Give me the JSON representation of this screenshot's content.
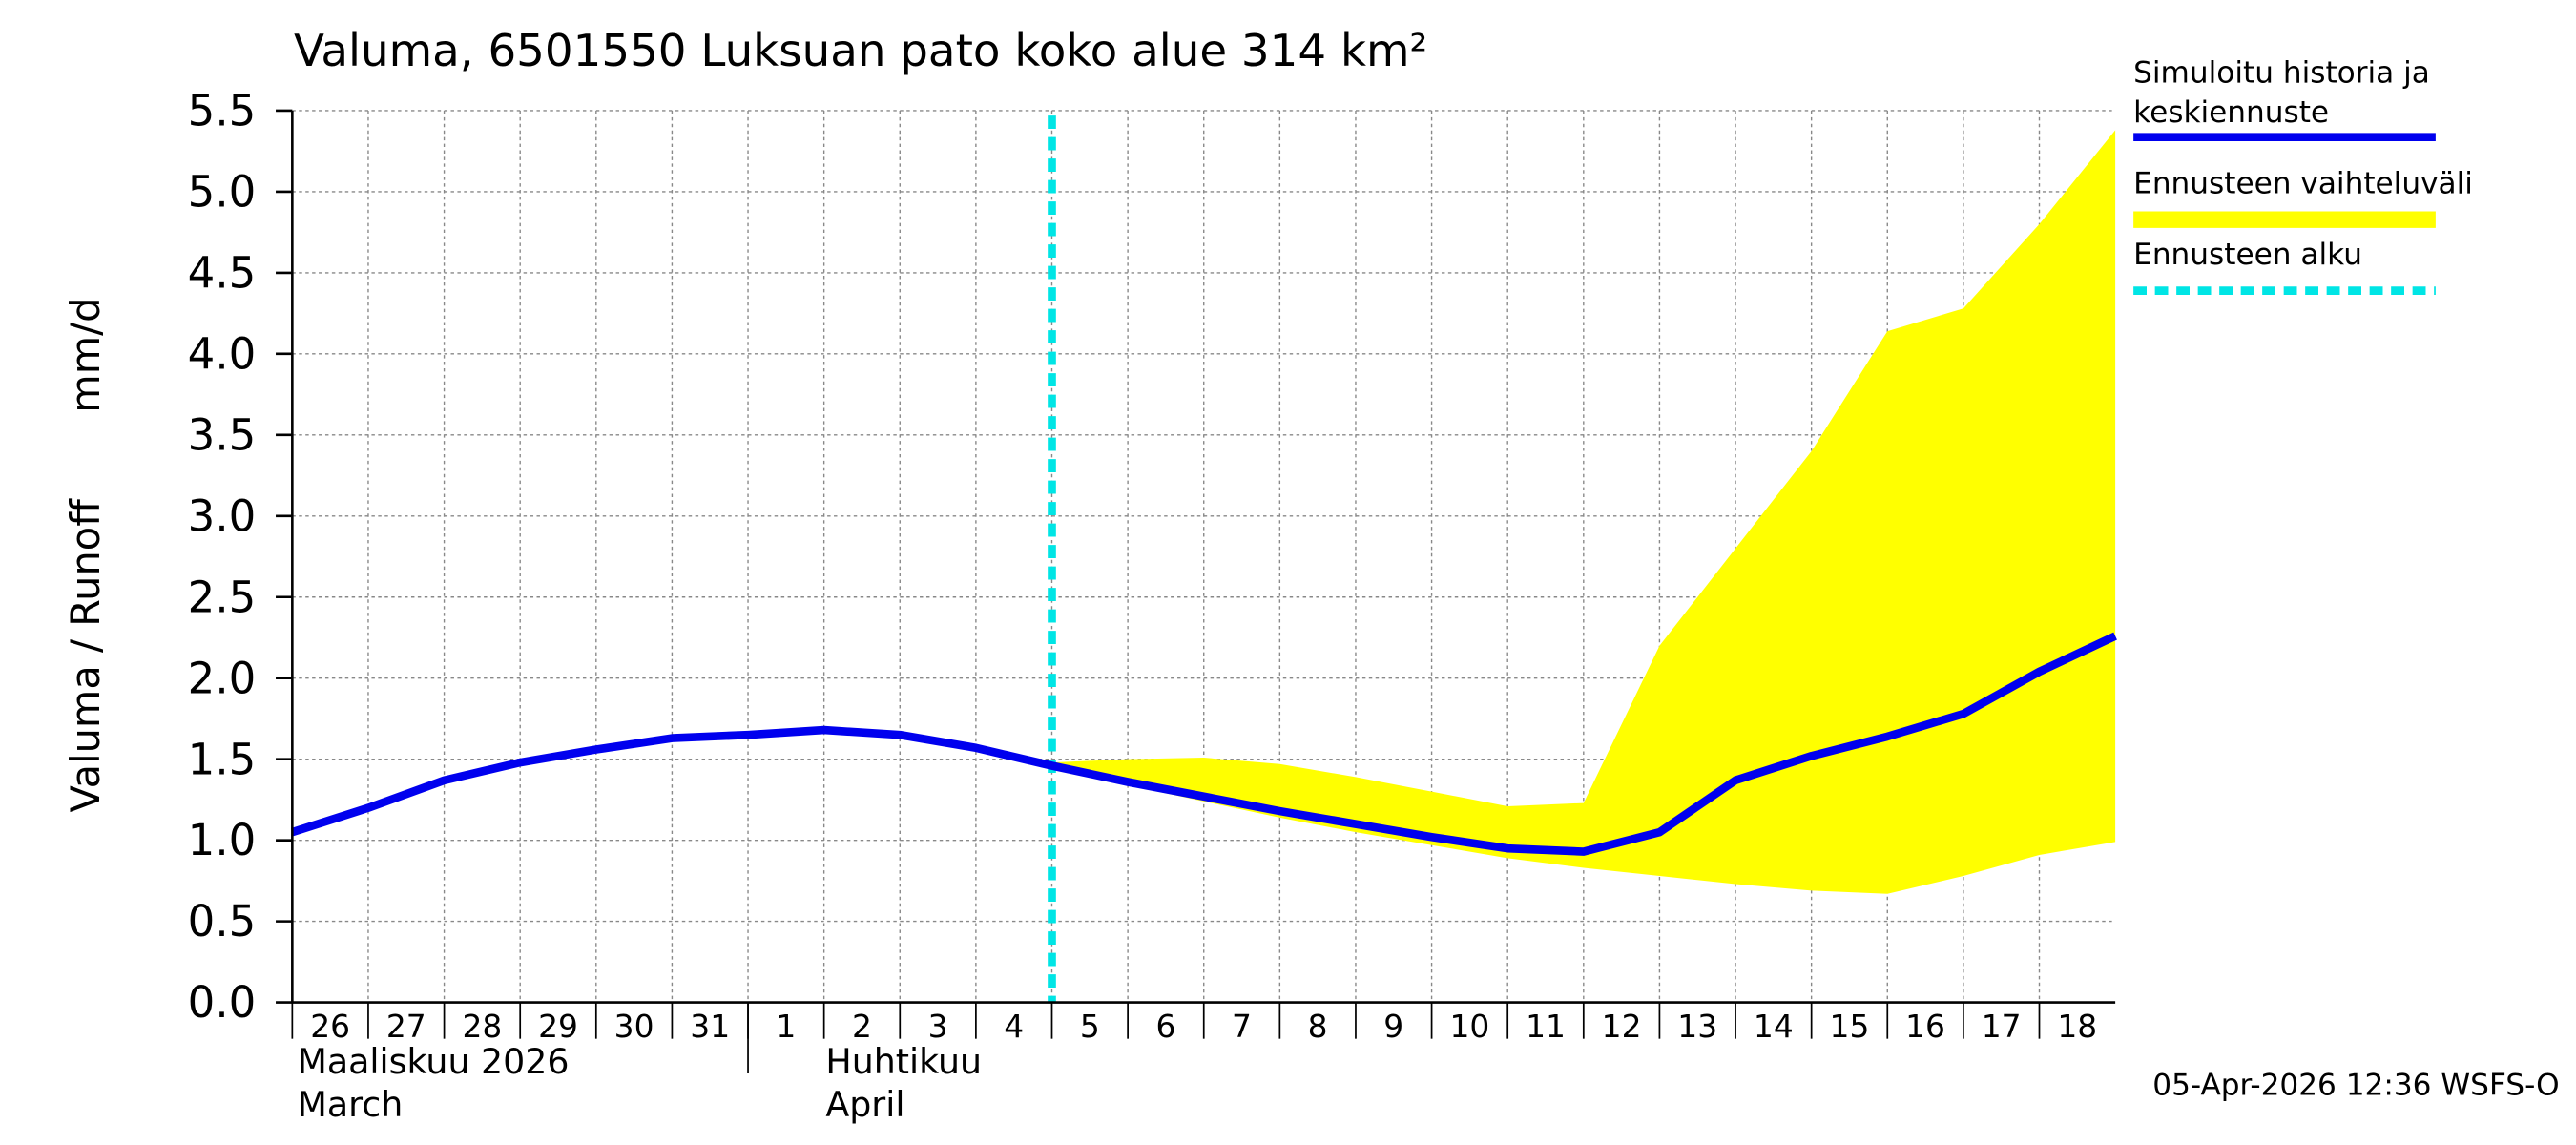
{
  "chart_data": {
    "type": "line",
    "title": "Valuma, 6501550 Luksuan pato koko alue 314 km²",
    "ylabel": "Valuma / Runoff",
    "yunit": "mm/d",
    "x": [
      "2026-03-26",
      "2026-03-27",
      "2026-03-28",
      "2026-03-29",
      "2026-03-30",
      "2026-03-31",
      "2026-04-01",
      "2026-04-02",
      "2026-04-03",
      "2026-04-04",
      "2026-04-05",
      "2026-04-06",
      "2026-04-07",
      "2026-04-08",
      "2026-04-09",
      "2026-04-10",
      "2026-04-11",
      "2026-04-12",
      "2026-04-13",
      "2026-04-14",
      "2026-04-15",
      "2026-04-16",
      "2026-04-17",
      "2026-04-18",
      "2026-04-19"
    ],
    "xlim": [
      "2026-03-26",
      "2026-04-19"
    ],
    "xticks": [
      {
        "value": "2026-03-26",
        "label": "26"
      },
      {
        "value": "2026-03-27",
        "label": "27"
      },
      {
        "value": "2026-03-28",
        "label": "28"
      },
      {
        "value": "2026-03-29",
        "label": "29"
      },
      {
        "value": "2026-03-30",
        "label": "30"
      },
      {
        "value": "2026-03-31",
        "label": "31"
      },
      {
        "value": "2026-04-01",
        "label": "1"
      },
      {
        "value": "2026-04-02",
        "label": "2"
      },
      {
        "value": "2026-04-03",
        "label": "3"
      },
      {
        "value": "2026-04-04",
        "label": "4"
      },
      {
        "value": "2026-04-05",
        "label": "5"
      },
      {
        "value": "2026-04-06",
        "label": "6"
      },
      {
        "value": "2026-04-07",
        "label": "7"
      },
      {
        "value": "2026-04-08",
        "label": "8"
      },
      {
        "value": "2026-04-09",
        "label": "9"
      },
      {
        "value": "2026-04-10",
        "label": "10"
      },
      {
        "value": "2026-04-11",
        "label": "11"
      },
      {
        "value": "2026-04-12",
        "label": "12"
      },
      {
        "value": "2026-04-13",
        "label": "13"
      },
      {
        "value": "2026-04-14",
        "label": "14"
      },
      {
        "value": "2026-04-15",
        "label": "15"
      },
      {
        "value": "2026-04-16",
        "label": "16"
      },
      {
        "value": "2026-04-17",
        "label": "17"
      },
      {
        "value": "2026-04-18",
        "label": "18"
      }
    ],
    "months": [
      [
        "Maaliskuu 2026",
        "March"
      ],
      [
        "Huhtikuu",
        "April"
      ]
    ],
    "ylim": [
      0,
      5.5
    ],
    "yticks": [
      {
        "value": 0,
        "label": "0.0"
      },
      {
        "value": 0.5,
        "label": "0.5"
      },
      {
        "value": 1,
        "label": "1.0"
      },
      {
        "value": 1.5,
        "label": "1.5"
      },
      {
        "value": 2,
        "label": "2.0"
      },
      {
        "value": 2.5,
        "label": "2.5"
      },
      {
        "value": 3,
        "label": "3.0"
      },
      {
        "value": 3.5,
        "label": "3.5"
      },
      {
        "value": 4,
        "label": "4.0"
      },
      {
        "value": 4.5,
        "label": "4.5"
      },
      {
        "value": 5,
        "label": "5.0"
      },
      {
        "value": 5.5,
        "label": "5.5"
      }
    ],
    "grid": true,
    "series": [
      {
        "name": "Simuloitu historia ja keskiennuste",
        "color": "#0000ee",
        "values": [
          1.05,
          1.2,
          1.37,
          1.48,
          1.56,
          1.63,
          1.65,
          1.68,
          1.65,
          1.57,
          1.46,
          1.36,
          1.27,
          1.18,
          1.1,
          1.02,
          0.95,
          0.93,
          1.05,
          1.37,
          1.52,
          1.64,
          1.78,
          2.04,
          2.26
        ]
      },
      {
        "name": "Ennusteen vaihteluväli",
        "color": "#ffff00",
        "upper": [
          null,
          null,
          null,
          null,
          null,
          null,
          null,
          null,
          null,
          null,
          1.48,
          1.5,
          1.51,
          1.47,
          1.39,
          1.3,
          1.21,
          1.23,
          2.2,
          2.8,
          3.4,
          4.14,
          4.28,
          4.8,
          5.38
        ],
        "lower": [
          null,
          null,
          null,
          null,
          null,
          null,
          null,
          null,
          null,
          null,
          1.45,
          1.34,
          1.24,
          1.14,
          1.05,
          0.97,
          0.89,
          0.83,
          0.78,
          0.73,
          0.69,
          0.67,
          0.78,
          0.91,
          0.99
        ]
      }
    ],
    "forecast_start": {
      "name": "Ennusteen alku",
      "color": "#00e5e5",
      "x": "2026-04-05"
    },
    "timestamp": "05-Apr-2026 12:36 WSFS-O"
  }
}
